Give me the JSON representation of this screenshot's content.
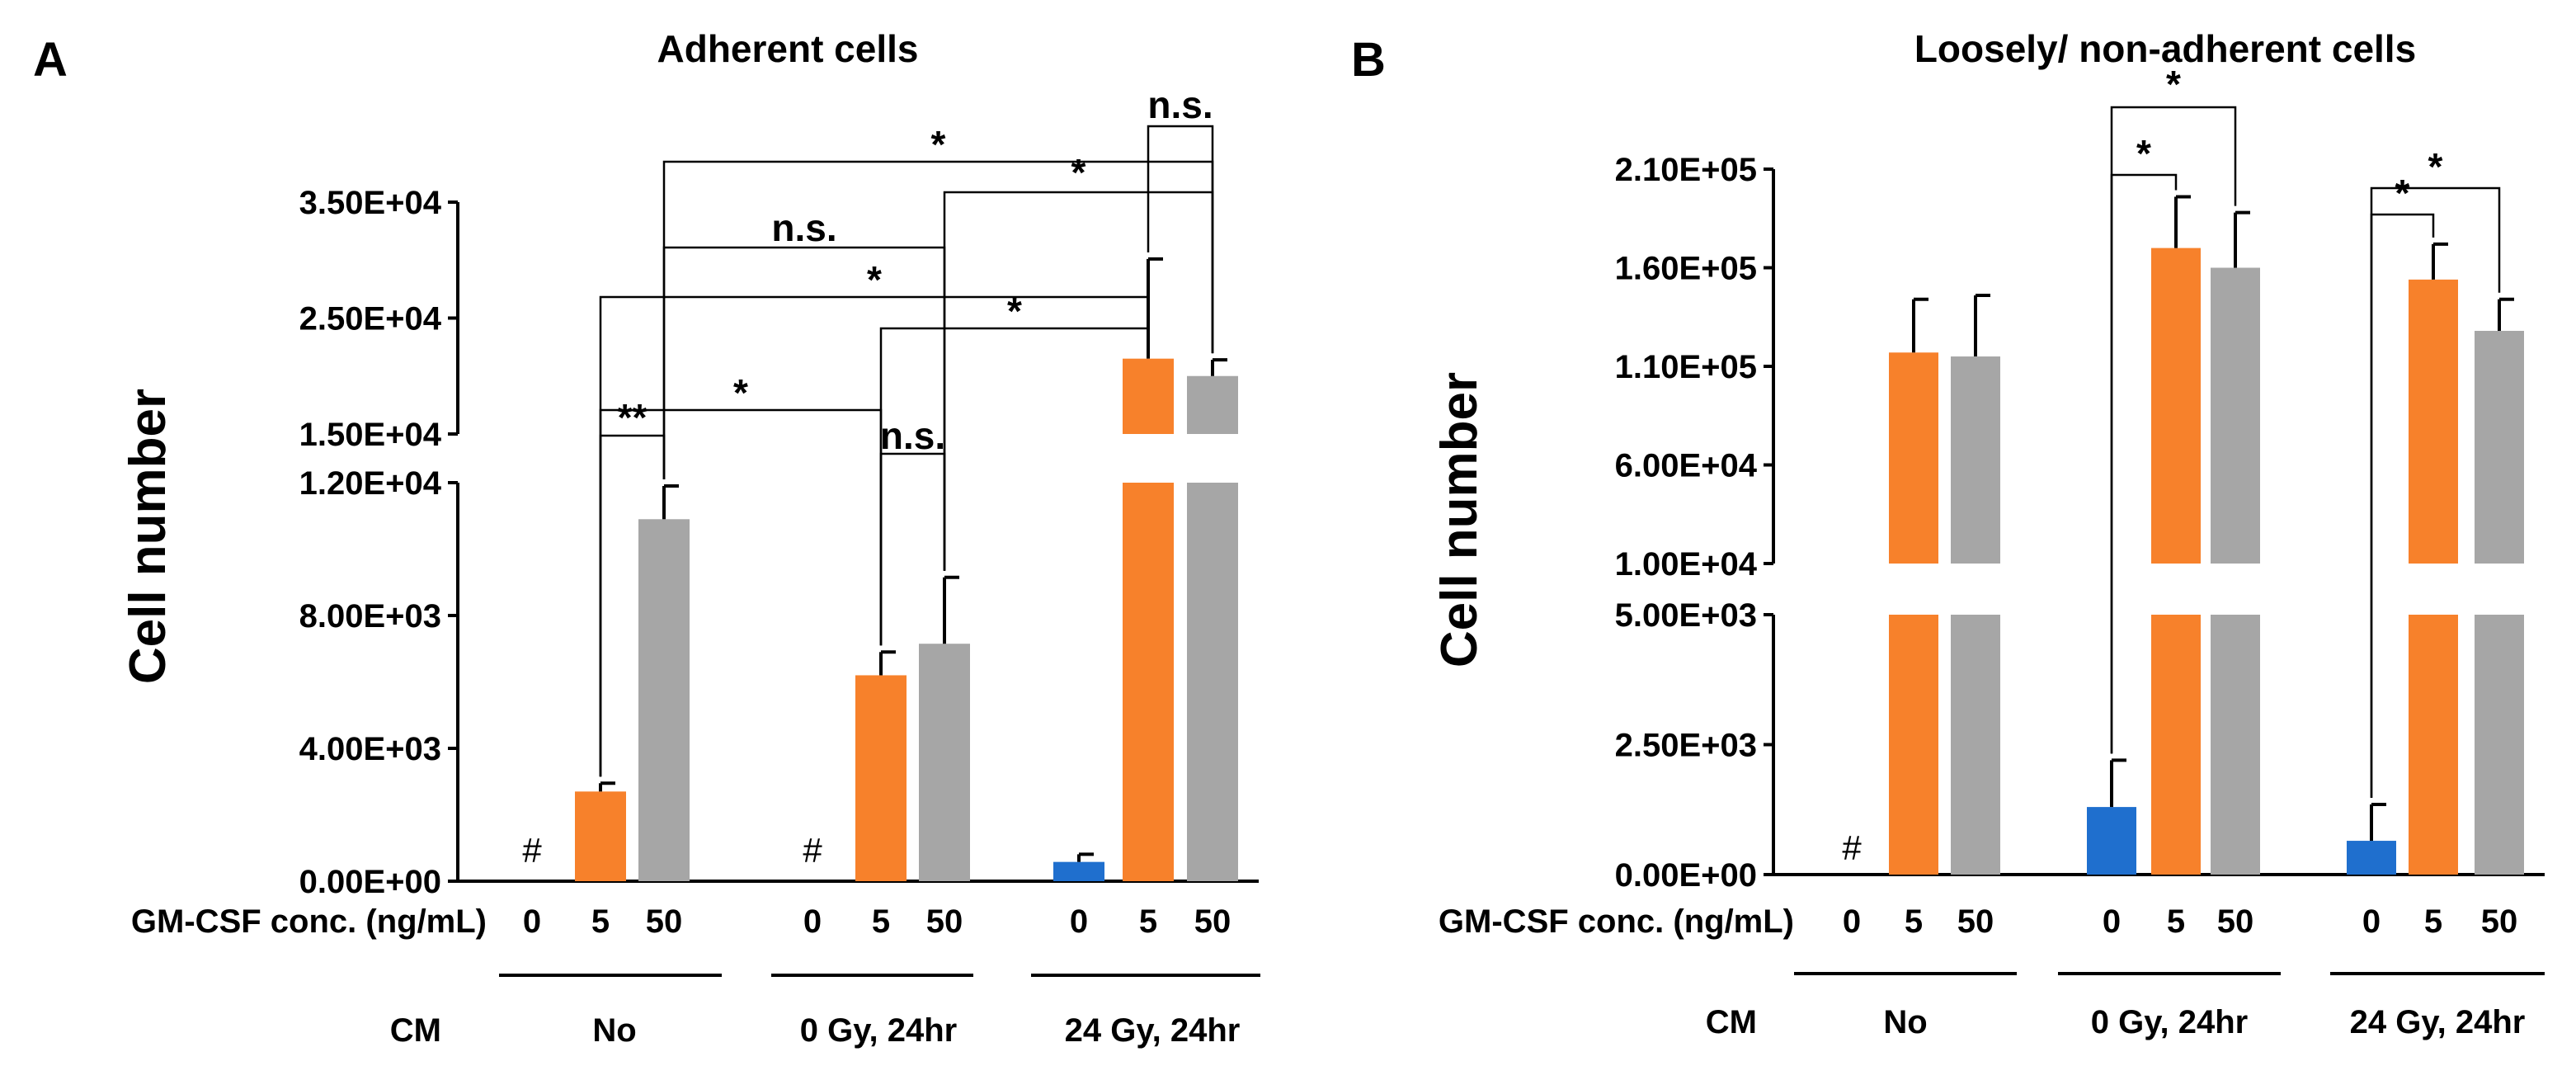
{
  "chart_data": [
    {
      "panel_letter": "A",
      "type": "bar",
      "title": "Adherent cells",
      "ylabel": "Cell number",
      "x_row_label": "GM-CSF conc. (ng/mL)",
      "cm_label": "CM",
      "y_axis": {
        "broken": true,
        "lower": {
          "ylim": [
            0,
            12000
          ],
          "ticks": [
            "0.00E+00",
            "4.00E+03",
            "8.00E+03",
            "1.20E+04"
          ],
          "tick_values": [
            0,
            4000,
            8000,
            12000
          ]
        },
        "upper": {
          "ylim": [
            15000,
            35000
          ],
          "ticks": [
            "1.50E+04",
            "2.50E+04",
            "3.50E+04"
          ],
          "tick_values": [
            15000,
            25000,
            35000
          ]
        }
      },
      "groups": [
        {
          "label": "No",
          "bars": [
            {
              "conc": "0",
              "value": null,
              "error": null,
              "note": "#"
            },
            {
              "conc": "5",
              "value": 2700,
              "error": 250
            },
            {
              "conc": "50",
              "value": 10900,
              "error": 1000
            }
          ]
        },
        {
          "label": "0 Gy, 24hr",
          "bars": [
            {
              "conc": "0",
              "value": null,
              "error": null,
              "note": "#"
            },
            {
              "conc": "5",
              "value": 6200,
              "error": 700
            },
            {
              "conc": "50",
              "value": 7150,
              "error": 2000
            }
          ]
        },
        {
          "label": "24 Gy, 24hr",
          "bars": [
            {
              "conc": "0",
              "value": 580,
              "error": 230
            },
            {
              "conc": "5",
              "value": 21500,
              "error": 8600
            },
            {
              "conc": "50",
              "value": 20000,
              "error": 1400
            }
          ]
        }
      ],
      "significance": [
        {
          "from": [
            0,
            1
          ],
          "to": [
            0,
            2
          ],
          "label": "**"
        },
        {
          "from": [
            0,
            1
          ],
          "to": [
            1,
            1
          ],
          "label": "*"
        },
        {
          "from": [
            1,
            1
          ],
          "to": [
            1,
            2
          ],
          "label": "n.s."
        },
        {
          "from": [
            1,
            1
          ],
          "to": [
            2,
            1
          ],
          "label": "*"
        },
        {
          "from": [
            0,
            1
          ],
          "to": [
            2,
            1
          ],
          "label": "*"
        },
        {
          "from": [
            0,
            2
          ],
          "to": [
            1,
            2
          ],
          "label": "n.s."
        },
        {
          "from": [
            1,
            2
          ],
          "to": [
            2,
            2
          ],
          "label": "*"
        },
        {
          "from": [
            0,
            2
          ],
          "to": [
            2,
            2
          ],
          "label": "*"
        },
        {
          "from": [
            2,
            1
          ],
          "to": [
            2,
            2
          ],
          "label": "n.s."
        }
      ],
      "series_colors": [
        "#1f6fce",
        "#f7812b",
        "#a6a6a6"
      ]
    },
    {
      "panel_letter": "B",
      "type": "bar",
      "title": "Loosely/ non-adherent cells",
      "ylabel": "Cell number",
      "x_row_label": "GM-CSF conc. (ng/mL)",
      "cm_label": "CM",
      "y_axis": {
        "broken": true,
        "lower": {
          "ylim": [
            0,
            5000
          ],
          "ticks": [
            "0.00E+00",
            "2.50E+03",
            "5.00E+03"
          ],
          "tick_values": [
            0,
            2500,
            5000
          ]
        },
        "upper": {
          "ylim": [
            10000,
            210000
          ],
          "ticks": [
            "1.00E+04",
            "6.00E+04",
            "1.10E+05",
            "1.60E+05",
            "2.10E+05"
          ],
          "tick_values": [
            10000,
            60000,
            110000,
            160000,
            210000
          ]
        }
      },
      "groups": [
        {
          "label": "No",
          "bars": [
            {
              "conc": "0",
              "value": null,
              "error": null,
              "note": "#"
            },
            {
              "conc": "5",
              "value": 117000,
              "error": 27000
            },
            {
              "conc": "50",
              "value": 115000,
              "error": 31000
            }
          ]
        },
        {
          "label": "0 Gy, 24hr",
          "bars": [
            {
              "conc": "0",
              "value": 1300,
              "error": 900
            },
            {
              "conc": "5",
              "value": 170000,
              "error": 26000
            },
            {
              "conc": "50",
              "value": 160000,
              "error": 28000
            }
          ]
        },
        {
          "label": "24 Gy, 24hr",
          "bars": [
            {
              "conc": "0",
              "value": 650,
              "error": 700
            },
            {
              "conc": "5",
              "value": 154000,
              "error": 18000
            },
            {
              "conc": "50",
              "value": 128000,
              "error": 16000
            }
          ]
        }
      ],
      "significance": [
        {
          "from": [
            1,
            0
          ],
          "to": [
            1,
            1
          ],
          "label": "*"
        },
        {
          "from": [
            1,
            0
          ],
          "to": [
            1,
            2
          ],
          "label": "*"
        },
        {
          "from": [
            2,
            0
          ],
          "to": [
            2,
            1
          ],
          "label": "*"
        },
        {
          "from": [
            2,
            0
          ],
          "to": [
            2,
            2
          ],
          "label": "*"
        }
      ],
      "series_colors": [
        "#1f6fce",
        "#f7812b",
        "#a6a6a6"
      ]
    }
  ]
}
